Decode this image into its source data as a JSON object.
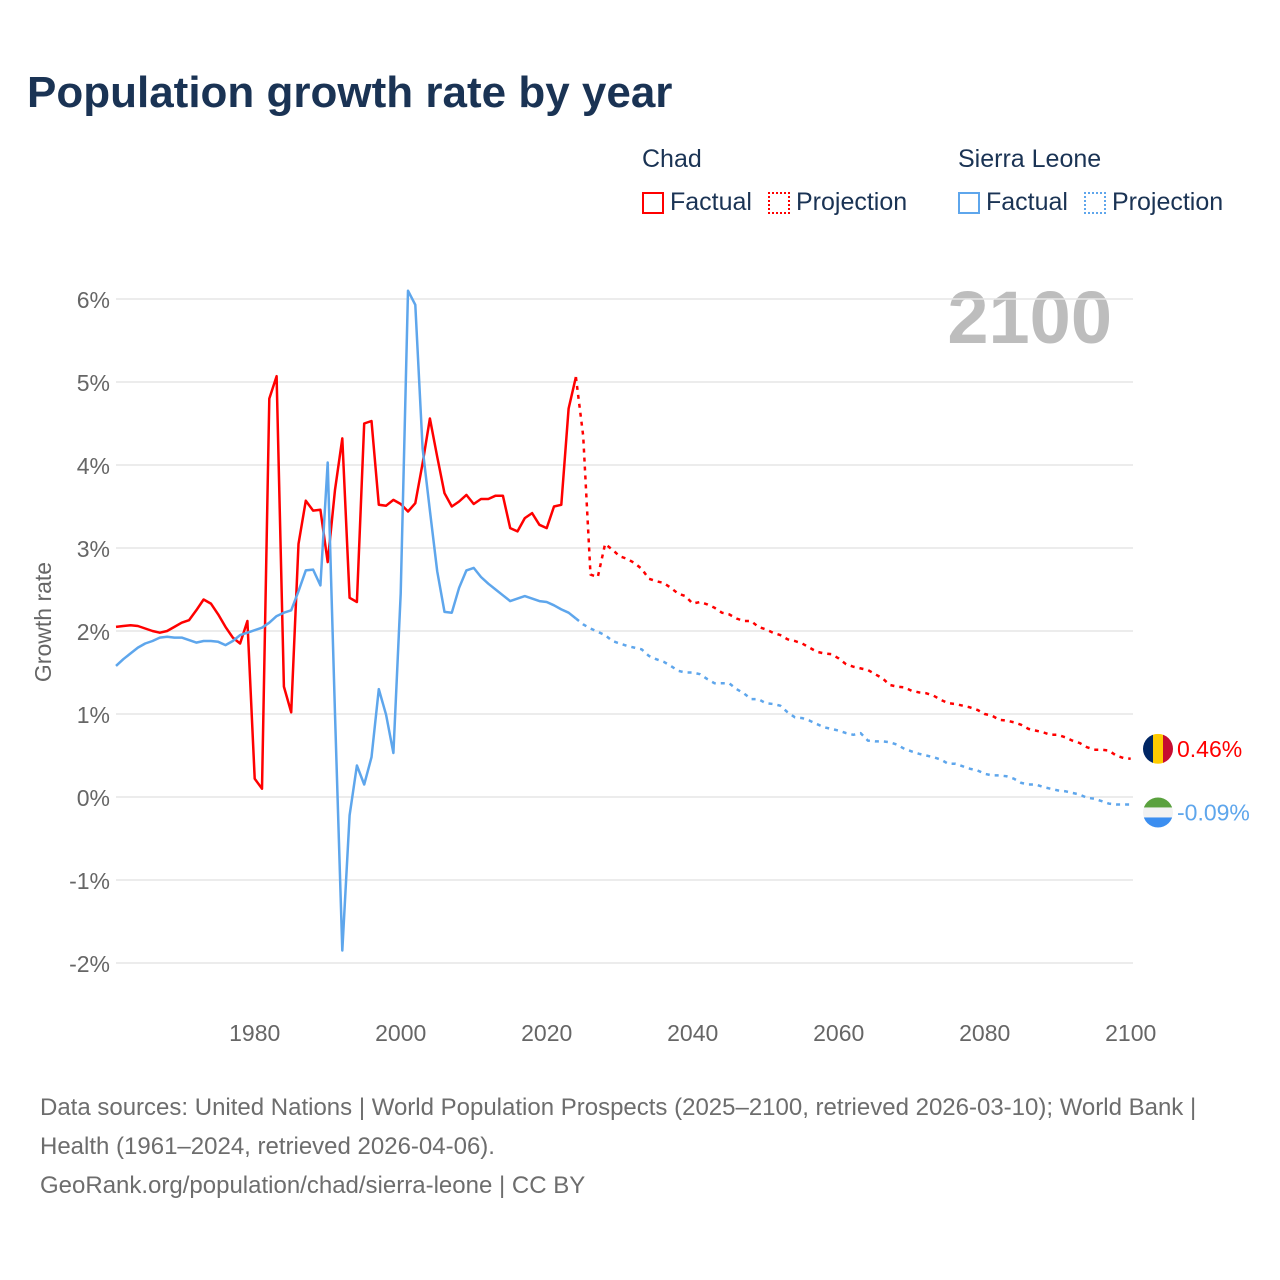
{
  "title": "Population growth rate by year",
  "current_year_label": "2100",
  "legend": [
    {
      "country": "Chad",
      "factual": "Factual",
      "projection": "Projection",
      "color": "#ff0000"
    },
    {
      "country": "Sierra Leone",
      "factual": "Factual",
      "projection": "Projection",
      "color": "#5ea6ec"
    }
  ],
  "chart_data": {
    "type": "line",
    "title": "Population growth rate by year",
    "xlabel": "",
    "ylabel": "Growth rate",
    "xlim": [
      1961,
      2100
    ],
    "ylim": [
      -2.4,
      6.3
    ],
    "x_ticks": [
      1980,
      2000,
      2020,
      2040,
      2060,
      2080,
      2100
    ],
    "y_ticks": [
      -2,
      -1,
      0,
      1,
      2,
      3,
      4,
      5,
      6
    ],
    "y_tick_labels": [
      "-2%",
      "-1%",
      "0%",
      "1%",
      "2%",
      "3%",
      "4%",
      "5%",
      "6%"
    ],
    "series": [
      {
        "name": "Chad Factual",
        "color": "#ff0000",
        "dashed": false,
        "x_start": 1961,
        "values": [
          2.05,
          2.06,
          2.07,
          2.06,
          2.03,
          2.0,
          1.98,
          2.0,
          2.05,
          2.1,
          2.13,
          2.25,
          2.38,
          2.33,
          2.2,
          2.05,
          1.92,
          1.85,
          2.12,
          0.22,
          0.1,
          4.8,
          5.07,
          1.33,
          1.02,
          3.05,
          3.57,
          3.45,
          3.46,
          2.83,
          3.7,
          4.32,
          2.4,
          2.35,
          4.5,
          4.53,
          3.52,
          3.51,
          3.58,
          3.53,
          3.44,
          3.54,
          4.02,
          4.56,
          4.1,
          3.66,
          3.5,
          3.56,
          3.64,
          3.53,
          3.59,
          3.59,
          3.63,
          3.63,
          3.24,
          3.2,
          3.36,
          3.42,
          3.28,
          3.24,
          3.5,
          3.52,
          4.68,
          5.06
        ]
      },
      {
        "name": "Chad Projection",
        "color": "#ff0000",
        "dashed": true,
        "x_start": 2024,
        "values": [
          5.06,
          4.35,
          2.68,
          2.65,
          3.05,
          2.98,
          2.9,
          2.87,
          2.82,
          2.75,
          2.63,
          2.6,
          2.58,
          2.52,
          2.45,
          2.42,
          2.33,
          2.35,
          2.32,
          2.28,
          2.22,
          2.2,
          2.15,
          2.12,
          2.12,
          2.05,
          2.02,
          1.98,
          1.95,
          1.9,
          1.88,
          1.85,
          1.8,
          1.75,
          1.73,
          1.72,
          1.67,
          1.6,
          1.57,
          1.55,
          1.53,
          1.48,
          1.43,
          1.35,
          1.33,
          1.32,
          1.28,
          1.26,
          1.25,
          1.22,
          1.17,
          1.13,
          1.12,
          1.1,
          1.08,
          1.05,
          1.0,
          0.98,
          0.93,
          0.92,
          0.9,
          0.87,
          0.82,
          0.8,
          0.78,
          0.75,
          0.75,
          0.72,
          0.68,
          0.65,
          0.6,
          0.57,
          0.57,
          0.56,
          0.5,
          0.47,
          0.46
        ]
      },
      {
        "name": "Sierra Leone Factual",
        "color": "#5ea6ec",
        "dashed": false,
        "x_start": 1961,
        "values": [
          1.58,
          1.66,
          1.73,
          1.8,
          1.85,
          1.88,
          1.92,
          1.93,
          1.92,
          1.92,
          1.89,
          1.86,
          1.88,
          1.88,
          1.87,
          1.83,
          1.88,
          1.95,
          1.98,
          2.01,
          2.04,
          2.1,
          2.18,
          2.22,
          2.25,
          2.48,
          2.73,
          2.74,
          2.55,
          4.03,
          1.0,
          -1.85,
          -0.22,
          0.38,
          0.15,
          0.48,
          1.3,
          0.99,
          0.53,
          2.45,
          6.1,
          5.93,
          4.2,
          3.45,
          2.72,
          2.23,
          2.22,
          2.52,
          2.73,
          2.76,
          2.65,
          2.57,
          2.5,
          2.43,
          2.36,
          2.39,
          2.42,
          2.39,
          2.36,
          2.35,
          2.31,
          2.26,
          2.22,
          2.15
        ]
      },
      {
        "name": "Sierra Leone Projection",
        "color": "#5ea6ec",
        "dashed": true,
        "x_start": 2024,
        "values": [
          2.15,
          2.08,
          2.03,
          1.99,
          1.95,
          1.88,
          1.85,
          1.82,
          1.8,
          1.78,
          1.7,
          1.66,
          1.63,
          1.58,
          1.52,
          1.5,
          1.5,
          1.48,
          1.42,
          1.37,
          1.37,
          1.37,
          1.3,
          1.25,
          1.18,
          1.18,
          1.13,
          1.12,
          1.1,
          1.02,
          0.96,
          0.95,
          0.92,
          0.88,
          0.84,
          0.82,
          0.8,
          0.77,
          0.75,
          0.77,
          0.68,
          0.67,
          0.67,
          0.66,
          0.63,
          0.58,
          0.55,
          0.52,
          0.5,
          0.48,
          0.45,
          0.4,
          0.4,
          0.37,
          0.34,
          0.32,
          0.28,
          0.26,
          0.26,
          0.25,
          0.22,
          0.17,
          0.15,
          0.15,
          0.12,
          0.1,
          0.08,
          0.07,
          0.05,
          0.03,
          -0.01,
          -0.02,
          -0.05,
          -0.08,
          -0.09,
          -0.09,
          -0.09
        ]
      }
    ],
    "end_labels": [
      {
        "country": "Chad",
        "text": "0.46%",
        "value": 0.46,
        "color": "#ff0000"
      },
      {
        "country": "Sierra Leone",
        "text": "-0.09%",
        "value": -0.09,
        "color": "#5ea6ec"
      }
    ]
  },
  "source": {
    "line1": "Data sources: United Nations | World Population Prospects (2025–2100, retrieved 2026-03-10); World Bank | Health (1961–2024, retrieved 2026-04-06).",
    "line2": "GeoRank.org/population/chad/sierra-leone | CC BY"
  }
}
